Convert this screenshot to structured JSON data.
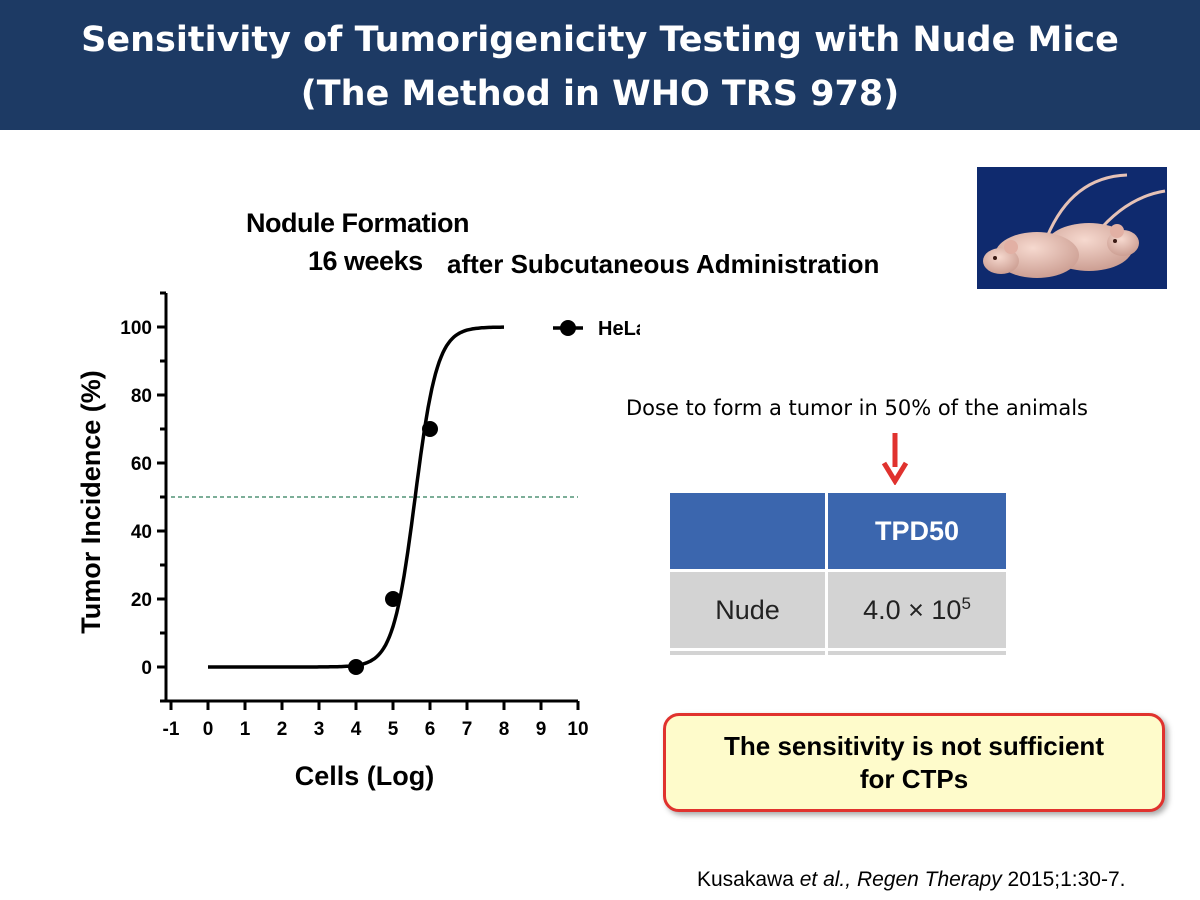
{
  "slide": {
    "title_line1": "Sensitivity of Tumorigenicity Testing with Nude Mice",
    "title_line2": "(The Method in WHO TRS 978)"
  },
  "chart_title": {
    "line1": "Nodule Formation",
    "line2_bold": "16 weeks",
    "line2_rest": "after Subcutaneous Administration"
  },
  "chart_data": {
    "type": "scatter",
    "xlabel": "Cells (Log)",
    "ylabel": "Tumor  Incidence (%)",
    "xlim": [
      -1,
      10
    ],
    "ylim": [
      -10,
      110
    ],
    "x_ticks": [
      "-1",
      "0",
      "1",
      "2",
      "3",
      "4",
      "5",
      "6",
      "7",
      "8",
      "9",
      "10"
    ],
    "y_ticks": [
      "0",
      "20",
      "40",
      "60",
      "80",
      "100"
    ],
    "series": [
      {
        "name": "HeLa in Nude",
        "points": [
          {
            "x": 4,
            "y": 0
          },
          {
            "x": 5,
            "y": 20
          },
          {
            "x": 6,
            "y": 70
          }
        ],
        "fit": {
          "model": "sigmoid",
          "bottom": 0,
          "top": 100,
          "x50": 5.6,
          "x_range": [
            0,
            8
          ]
        },
        "color": "#000000"
      }
    ],
    "reference_line": {
      "y": 50,
      "color": "#2e7d5b",
      "style": "dashed"
    },
    "legend_position": "top-right",
    "grid": false
  },
  "annotation": {
    "dose_text": "Dose to form a tumor in 50% of the animals",
    "arrow_color": "#e0322e"
  },
  "table": {
    "header": [
      "",
      "TPD50"
    ],
    "rows": [
      {
        "label": "Nude",
        "value": "4.0 × 10",
        "exponent": "5"
      }
    ]
  },
  "callout": {
    "line1": "The sensitivity is not sufficient",
    "line2": "for CTPs"
  },
  "citation": {
    "authors": "Kusakawa ",
    "etal": "et al., ",
    "journal": "Regen Therapy",
    "ref": " 2015;1:30-7."
  },
  "colors": {
    "banner": "#1d3a64",
    "table_header": "#3b66ae",
    "table_body": "#d3d3d3",
    "callout_fill": "#fefbcb",
    "callout_border": "#e0322e"
  }
}
